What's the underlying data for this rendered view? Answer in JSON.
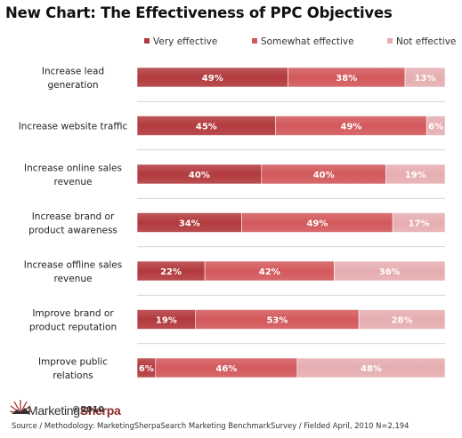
{
  "chart_data": {
    "type": "bar",
    "orientation": "horizontal",
    "stacked": "percent",
    "title": "New Chart: The Effectiveness of PPC Objectives",
    "categories": [
      [
        "Increase lead",
        "generation"
      ],
      [
        "Increase website traffic"
      ],
      [
        "Increase online sales",
        "revenue"
      ],
      [
        "Increase brand or",
        "product awareness"
      ],
      [
        "Increase offline sales",
        "revenue"
      ],
      [
        "Improve brand or",
        "product reputation"
      ],
      [
        "Improve public",
        "relations"
      ]
    ],
    "series": [
      {
        "name": "Very effective",
        "color": "#b23a3d",
        "values": [
          49,
          45,
          40,
          34,
          22,
          19,
          6
        ]
      },
      {
        "name": "Somewhat effective",
        "color": "#d3595c",
        "values": [
          38,
          49,
          40,
          49,
          42,
          53,
          46
        ]
      },
      {
        "name": "Not effective",
        "color": "#e6aeb1",
        "values": [
          13,
          6,
          19,
          17,
          36,
          28,
          48
        ]
      }
    ],
    "value_suffix": "%",
    "legend_position": "top",
    "grid": false
  },
  "logo": {
    "name_prefix": "Marketing",
    "name_suffix": "Sherpa",
    "icon": "sunburst-logo-icon"
  },
  "copyright": "©2010",
  "source": "Source / Methodology: MarketingSherpaSearch Marketing BenchmarkSurvey / Fielded April, 2010 N=2,194"
}
